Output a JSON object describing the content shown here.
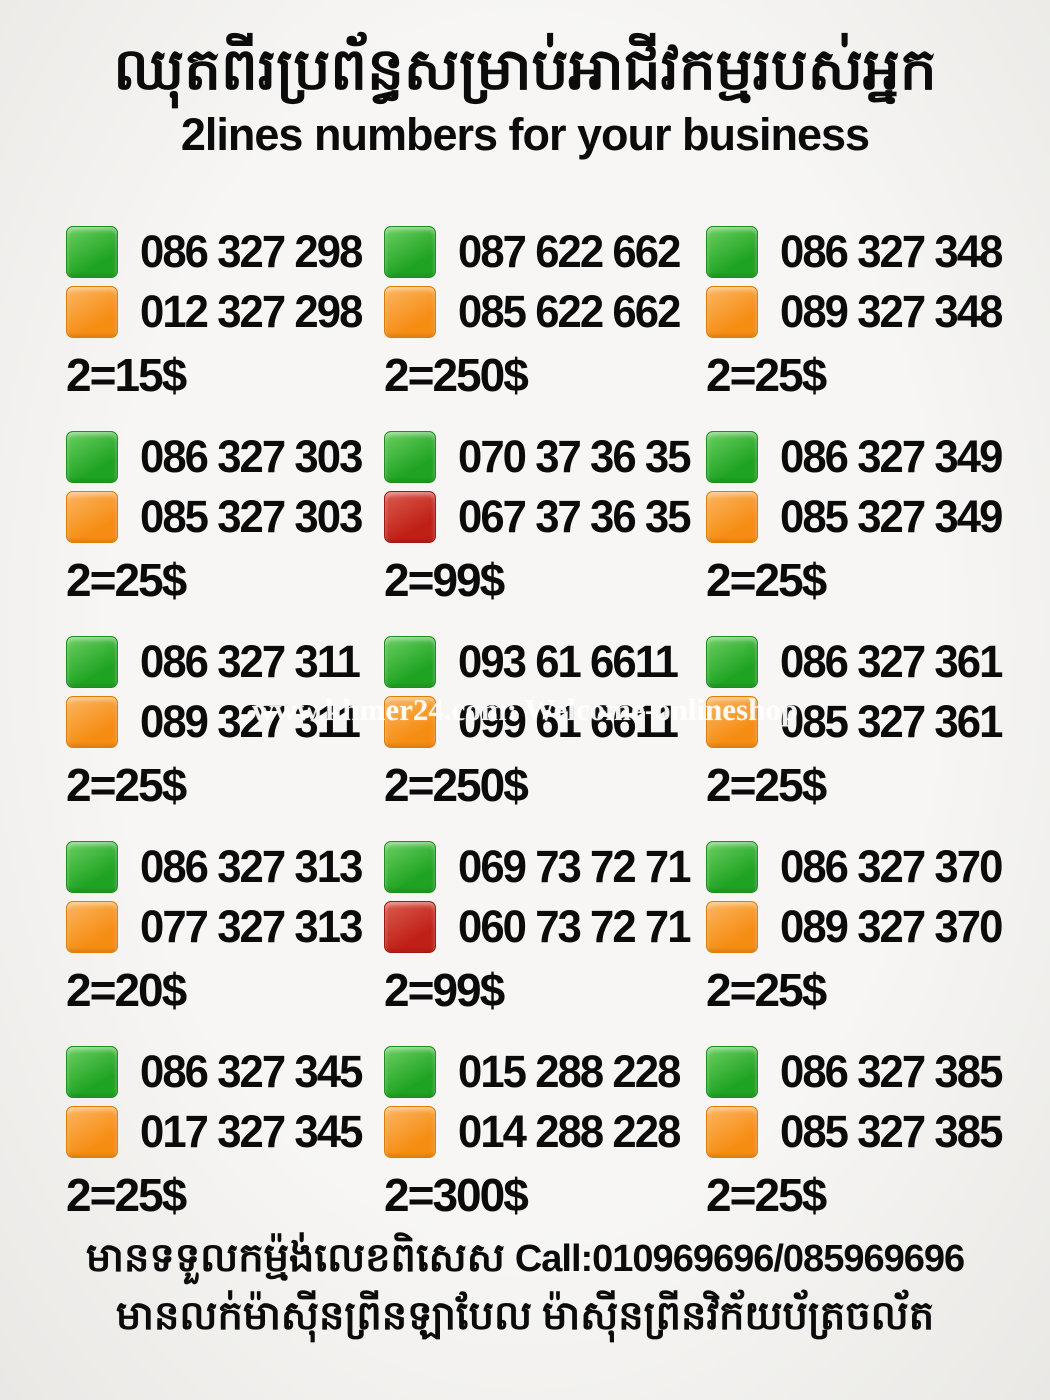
{
  "header": {
    "title_khmer": "ឈុតពីរប្រព័ន្ធសម្រាប់អាជីវកម្មរបស់អ្នក",
    "subtitle": "2lines numbers for your business"
  },
  "watermark": "www.khmer24.com: Welcome-onlineshop",
  "colors": {
    "green": "#1fa322",
    "orange": "#f68d13",
    "red": "#c01f15",
    "background": "#f4f3f1",
    "text": "#0b0b0b"
  },
  "grid": [
    {
      "line1": {
        "color": "green",
        "number": "086 327 298"
      },
      "line2": {
        "color": "orange",
        "number": "012 327 298"
      },
      "price": "2=15$"
    },
    {
      "line1": {
        "color": "green",
        "number": "087 622 662"
      },
      "line2": {
        "color": "orange",
        "number": "085 622 662"
      },
      "price": "2=250$"
    },
    {
      "line1": {
        "color": "green",
        "number": "086 327 348"
      },
      "line2": {
        "color": "orange",
        "number": "089 327 348"
      },
      "price": "2=25$"
    },
    {
      "line1": {
        "color": "green",
        "number": "086 327 303"
      },
      "line2": {
        "color": "orange",
        "number": "085 327 303"
      },
      "price": "2=25$"
    },
    {
      "line1": {
        "color": "green",
        "number": "070 37 36 35"
      },
      "line2": {
        "color": "red",
        "number": "067 37 36 35"
      },
      "price": "2=99$"
    },
    {
      "line1": {
        "color": "green",
        "number": "086 327 349"
      },
      "line2": {
        "color": "orange",
        "number": "085 327 349"
      },
      "price": "2=25$"
    },
    {
      "line1": {
        "color": "green",
        "number": "086 327 311"
      },
      "line2": {
        "color": "orange",
        "number": "089 327 311"
      },
      "price": "2=25$"
    },
    {
      "line1": {
        "color": "green",
        "number": "093 61 6611"
      },
      "line2": {
        "color": "orange",
        "number": "099 61 6611"
      },
      "price": "2=250$"
    },
    {
      "line1": {
        "color": "green",
        "number": "086 327 361"
      },
      "line2": {
        "color": "orange",
        "number": "085 327 361"
      },
      "price": "2=25$"
    },
    {
      "line1": {
        "color": "green",
        "number": "086 327 313"
      },
      "line2": {
        "color": "orange",
        "number": "077 327 313"
      },
      "price": "2=20$"
    },
    {
      "line1": {
        "color": "green",
        "number": "069 73 72 71"
      },
      "line2": {
        "color": "red",
        "number": "060 73 72 71"
      },
      "price": "2=99$"
    },
    {
      "line1": {
        "color": "green",
        "number": "086 327 370"
      },
      "line2": {
        "color": "orange",
        "number": "089 327 370"
      },
      "price": "2=25$"
    },
    {
      "line1": {
        "color": "green",
        "number": "086 327 345"
      },
      "line2": {
        "color": "orange",
        "number": "017 327 345"
      },
      "price": "2=25$"
    },
    {
      "line1": {
        "color": "green",
        "number": "015 288 228"
      },
      "line2": {
        "color": "orange",
        "number": "014 288 228"
      },
      "price": "2=300$"
    },
    {
      "line1": {
        "color": "green",
        "number": "086 327 385"
      },
      "line2": {
        "color": "orange",
        "number": "085 327 385"
      },
      "price": "2=25$"
    }
  ],
  "footer": {
    "line1_khmer": "មានទទួលកម្ម៉ង់លេខពិសេស",
    "line1_call": "Call:010969696/085969696",
    "line2_khmer": "មានលក់ម៉ាស៊ីនព្រីនឡាបែល ម៉ាស៊ីនព្រីនវិក័យប័ត្រចល័ត"
  }
}
